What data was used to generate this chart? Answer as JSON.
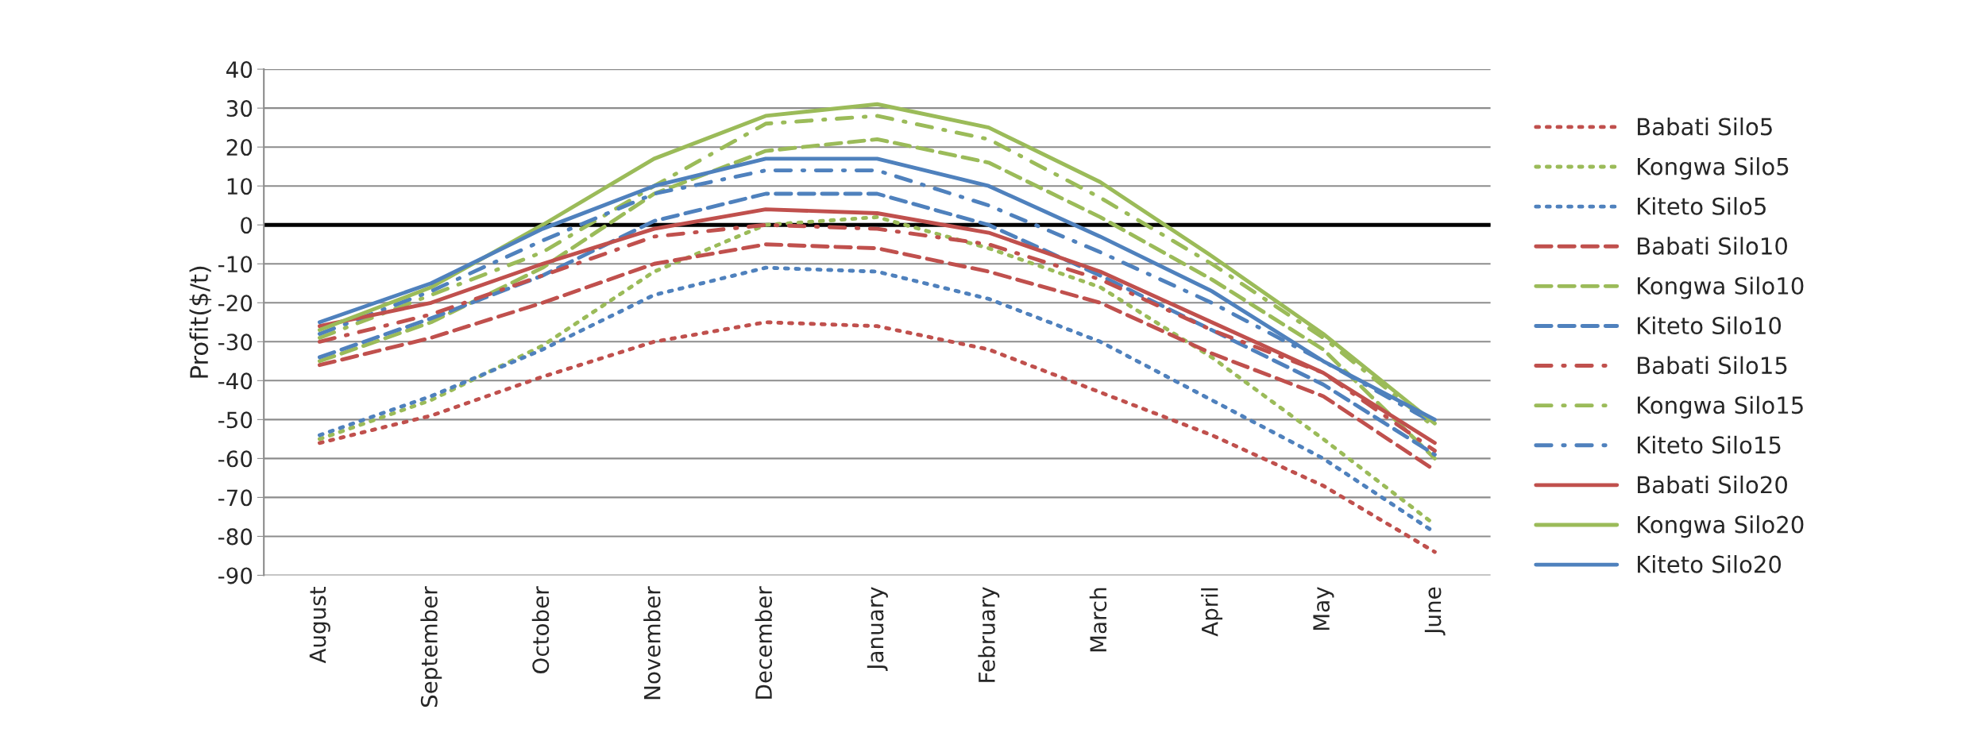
{
  "chart_data": {
    "type": "line",
    "ylabel": "Profit($/t)",
    "categories": [
      "August",
      "September",
      "October",
      "November",
      "December",
      "January",
      "February",
      "March",
      "April",
      "May",
      "June"
    ],
    "ylim": [
      -90,
      40
    ],
    "yticks": [
      -90,
      -80,
      -70,
      -60,
      -50,
      -40,
      -30,
      -20,
      -10,
      0,
      10,
      20,
      30,
      40
    ],
    "grid": "y",
    "legend": "right",
    "ref_lines": [
      {
        "axis": "y",
        "value": 0,
        "color": "#000000"
      }
    ],
    "series": [
      {
        "name": "Babati Silo5",
        "color": "#c0504d",
        "line_style": "dotted",
        "values": [
          -56,
          -49,
          -39,
          -30,
          -25,
          -26,
          -32,
          -43,
          -54,
          -67,
          -84
        ]
      },
      {
        "name": "Kongwa Silo5",
        "color": "#9bbb59",
        "line_style": "dotted",
        "values": [
          -55,
          -45,
          -31,
          -12,
          0,
          2,
          -6,
          -16,
          -34,
          -55,
          -77
        ]
      },
      {
        "name": "Kiteto Silo5",
        "color": "#4f81bd",
        "line_style": "dotted",
        "values": [
          -54,
          -44,
          -32,
          -18,
          -11,
          -12,
          -19,
          -30,
          -45,
          -60,
          -79
        ]
      },
      {
        "name": "Babati Silo10",
        "color": "#c0504d",
        "line_style": "dashed",
        "values": [
          -36,
          -29,
          -20,
          -10,
          -5,
          -6,
          -12,
          -20,
          -33,
          -44,
          -63
        ]
      },
      {
        "name": "Kongwa Silo10",
        "color": "#9bbb59",
        "line_style": "dashed",
        "values": [
          -35,
          -25,
          -11,
          8,
          19,
          22,
          16,
          2,
          -14,
          -32,
          -60
        ]
      },
      {
        "name": "Kiteto Silo10",
        "color": "#4f81bd",
        "line_style": "dashed",
        "values": [
          -34,
          -24,
          -13,
          1,
          8,
          8,
          0,
          -13,
          -27,
          -41,
          -59
        ]
      },
      {
        "name": "Babati Silo15",
        "color": "#c0504d",
        "line_style": "dashdot",
        "values": [
          -30,
          -23,
          -13,
          -3,
          0,
          -1,
          -5,
          -14,
          -27,
          -38,
          -58
        ]
      },
      {
        "name": "Kongwa Silo15",
        "color": "#9bbb59",
        "line_style": "dashdot",
        "values": [
          -29,
          -18,
          -7,
          10,
          26,
          28,
          22,
          7,
          -10,
          -29,
          -52
        ]
      },
      {
        "name": "Kiteto Silo15",
        "color": "#4f81bd",
        "line_style": "dashdot",
        "values": [
          -28,
          -17,
          -4,
          8,
          14,
          14,
          5,
          -7,
          -20,
          -35,
          -51
        ]
      },
      {
        "name": "Babati Silo20",
        "color": "#c0504d",
        "line_style": "solid",
        "values": [
          -26,
          -20,
          -10,
          -1,
          4,
          3,
          -2,
          -12,
          -25,
          -38,
          -56
        ]
      },
      {
        "name": "Kongwa Silo20",
        "color": "#9bbb59",
        "line_style": "solid",
        "values": [
          -27,
          -16,
          0,
          17,
          28,
          31,
          25,
          11,
          -8,
          -28,
          -51
        ]
      },
      {
        "name": "Kiteto Silo20",
        "color": "#4f81bd",
        "line_style": "solid",
        "values": [
          -25,
          -15,
          -1,
          10,
          17,
          17,
          10,
          -3,
          -17,
          -35,
          -50
        ]
      }
    ]
  }
}
